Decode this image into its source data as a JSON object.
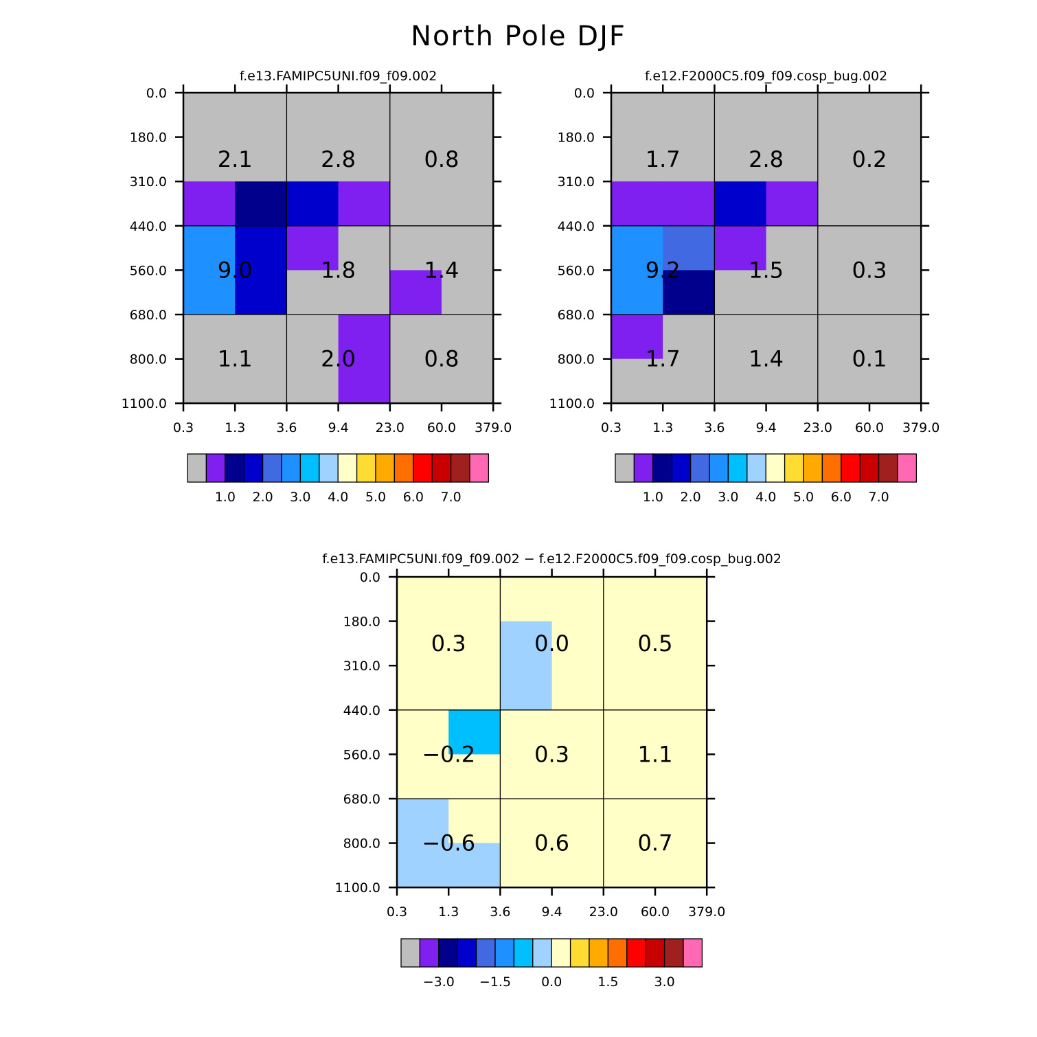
{
  "title": "North Pole DJF",
  "colors": {
    "palette": [
      "#bebebe",
      "#8020f0",
      "#00008c",
      "#0000cd",
      "#4169e1",
      "#1e90ff",
      "#00bfff",
      "#a0d2ff",
      "#ffffc8",
      "#ffdc32",
      "#ffaa00",
      "#ff6e00",
      "#ff0000",
      "#c80000",
      "#a02020",
      "#ff69b4"
    ]
  },
  "chart_data": [
    {
      "type": "heatmap",
      "panel": "top-left",
      "title": "f.e13.FAMIPC5UNI.f09_f09.002",
      "x_ticks": [
        "0.3",
        "1.3",
        "3.6",
        "9.4",
        "23.0",
        "60.0",
        "379.0"
      ],
      "y_ticks": [
        "0.0",
        "180.0",
        "310.0",
        "440.0",
        "560.0",
        "680.0",
        "800.0",
        "1100.0"
      ],
      "cell_colors": [
        [
          0,
          0,
          0,
          0,
          0,
          0
        ],
        [
          0,
          0,
          0,
          0,
          0,
          0
        ],
        [
          1,
          2,
          3,
          1,
          0,
          0
        ],
        [
          5,
          3,
          1,
          0,
          0,
          0
        ],
        [
          5,
          3,
          0,
          0,
          1,
          0
        ],
        [
          0,
          0,
          0,
          1,
          0,
          0
        ],
        [
          0,
          0,
          0,
          1,
          0,
          0
        ]
      ],
      "labels": [
        [
          "2.1",
          "2.8",
          "0.8"
        ],
        [
          "9.0",
          "1.8",
          "1.4"
        ],
        [
          "1.1",
          "2.0",
          "0.8"
        ]
      ],
      "colorbar": {
        "ticks": [
          "1.0",
          "2.0",
          "3.0",
          "4.0",
          "5.0",
          "6.0",
          "7.0"
        ],
        "first_tick_boundary": 2
      }
    },
    {
      "type": "heatmap",
      "panel": "top-right",
      "title": "f.e12.F2000C5.f09_f09.cosp_bug.002",
      "x_ticks": [
        "0.3",
        "1.3",
        "3.6",
        "9.4",
        "23.0",
        "60.0",
        "379.0"
      ],
      "y_ticks": [
        "0.0",
        "180.0",
        "310.0",
        "440.0",
        "560.0",
        "680.0",
        "800.0",
        "1100.0"
      ],
      "cell_colors": [
        [
          0,
          0,
          0,
          0,
          0,
          0
        ],
        [
          0,
          0,
          0,
          0,
          0,
          0
        ],
        [
          1,
          1,
          3,
          1,
          0,
          0
        ],
        [
          5,
          4,
          1,
          0,
          0,
          0
        ],
        [
          5,
          2,
          0,
          0,
          0,
          0
        ],
        [
          1,
          0,
          0,
          0,
          0,
          0
        ],
        [
          0,
          0,
          0,
          0,
          0,
          0
        ]
      ],
      "labels": [
        [
          "1.7",
          "2.8",
          "0.2"
        ],
        [
          "9.2",
          "1.5",
          "0.3"
        ],
        [
          "1.7",
          "1.4",
          "0.1"
        ]
      ],
      "colorbar": {
        "ticks": [
          "1.0",
          "2.0",
          "3.0",
          "4.0",
          "5.0",
          "6.0",
          "7.0"
        ],
        "first_tick_boundary": 2
      }
    },
    {
      "type": "heatmap",
      "panel": "bottom-difference",
      "title": "f.e13.FAMIPC5UNI.f09_f09.002 − f.e12.F2000C5.f09_f09.cosp_bug.002",
      "x_ticks": [
        "0.3",
        "1.3",
        "3.6",
        "9.4",
        "23.0",
        "60.0",
        "379.0"
      ],
      "y_ticks": [
        "0.0",
        "180.0",
        "310.0",
        "440.0",
        "560.0",
        "680.0",
        "800.0",
        "1100.0"
      ],
      "cell_colors": [
        [
          8,
          8,
          8,
          8,
          8,
          8
        ],
        [
          8,
          8,
          7,
          8,
          8,
          8
        ],
        [
          8,
          8,
          7,
          8,
          8,
          8
        ],
        [
          8,
          6,
          8,
          8,
          8,
          8
        ],
        [
          8,
          8,
          8,
          8,
          8,
          8
        ],
        [
          7,
          8,
          8,
          8,
          8,
          8
        ],
        [
          7,
          7,
          8,
          8,
          8,
          8
        ]
      ],
      "labels": [
        [
          "0.3",
          "0.0",
          "0.5"
        ],
        [
          "−0.2",
          "0.3",
          "1.1"
        ],
        [
          "−0.6",
          "0.6",
          "0.7"
        ]
      ],
      "colorbar": {
        "ticks": [
          "−3.0",
          "−1.5",
          "0.0",
          "1.5",
          "3.0"
        ],
        "first_tick_boundary": 2,
        "tick_step": 3
      }
    }
  ]
}
